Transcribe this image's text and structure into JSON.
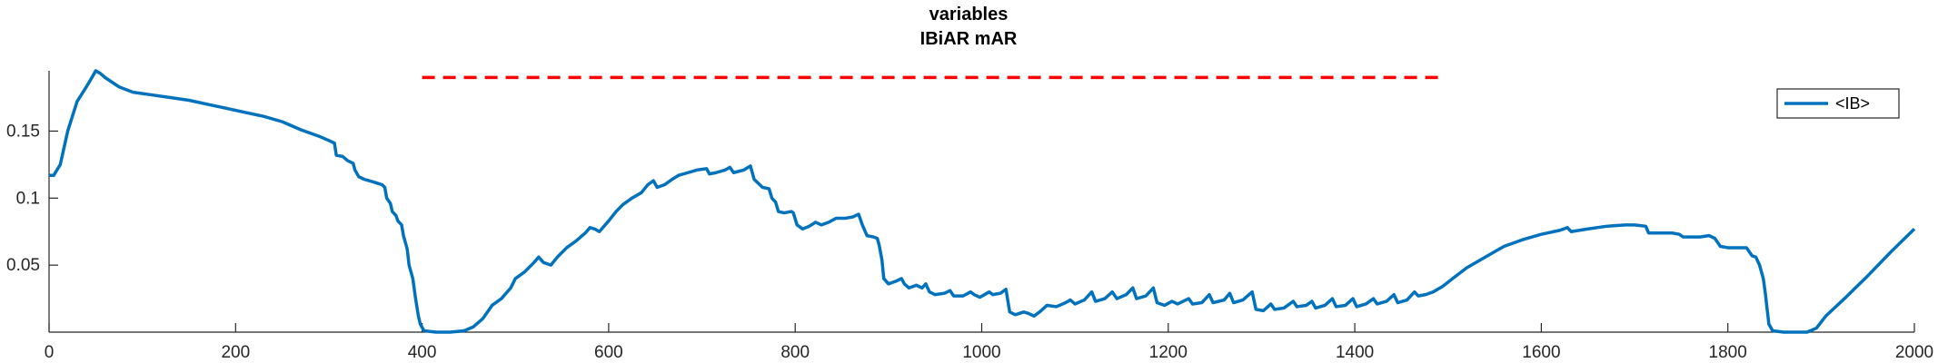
{
  "chart_data": {
    "type": "line",
    "title": "variables",
    "subtitle": "IBiAR mAR",
    "xlabel": "",
    "ylabel": "",
    "xlim": [
      0,
      2000
    ],
    "ylim": [
      0,
      0.195
    ],
    "xticks": [
      0,
      200,
      400,
      600,
      800,
      1000,
      1200,
      1400,
      1600,
      1800,
      2000
    ],
    "yticks": [
      0.05,
      0.1,
      0.15
    ],
    "ytick_labels": [
      "0.05",
      "0.1",
      "0.15"
    ],
    "grid": false,
    "legend": {
      "position": "top-right",
      "entries": [
        "<IB>"
      ]
    },
    "series": [
      {
        "name": "<IB>",
        "color": "#0072BD",
        "points": [
          [
            0,
            0.117
          ],
          [
            5,
            0.117
          ],
          [
            12,
            0.125
          ],
          [
            20,
            0.15
          ],
          [
            30,
            0.172
          ],
          [
            40,
            0.183
          ],
          [
            46,
            0.19
          ],
          [
            50,
            0.195
          ],
          [
            55,
            0.193
          ],
          [
            60,
            0.19
          ],
          [
            75,
            0.183
          ],
          [
            90,
            0.179
          ],
          [
            110,
            0.177
          ],
          [
            130,
            0.175
          ],
          [
            150,
            0.173
          ],
          [
            170,
            0.17
          ],
          [
            190,
            0.167
          ],
          [
            210,
            0.164
          ],
          [
            230,
            0.161
          ],
          [
            250,
            0.157
          ],
          [
            270,
            0.151
          ],
          [
            290,
            0.146
          ],
          [
            300,
            0.143
          ],
          [
            306,
            0.141
          ],
          [
            308,
            0.132
          ],
          [
            315,
            0.131
          ],
          [
            320,
            0.128
          ],
          [
            326,
            0.126
          ],
          [
            328,
            0.121
          ],
          [
            332,
            0.116
          ],
          [
            338,
            0.114
          ],
          [
            348,
            0.112
          ],
          [
            357,
            0.11
          ],
          [
            360,
            0.108
          ],
          [
            362,
            0.1
          ],
          [
            366,
            0.096
          ],
          [
            368,
            0.09
          ],
          [
            372,
            0.087
          ],
          [
            374,
            0.083
          ],
          [
            378,
            0.08
          ],
          [
            380,
            0.072
          ],
          [
            384,
            0.062
          ],
          [
            386,
            0.05
          ],
          [
            390,
            0.04
          ],
          [
            393,
            0.025
          ],
          [
            396,
            0.012
          ],
          [
            398,
            0.006
          ],
          [
            402,
            0.001
          ],
          [
            415,
            0.0
          ],
          [
            430,
            0.0
          ],
          [
            445,
            0.001
          ],
          [
            455,
            0.004
          ],
          [
            465,
            0.01
          ],
          [
            475,
            0.02
          ],
          [
            485,
            0.025
          ],
          [
            495,
            0.033
          ],
          [
            500,
            0.04
          ],
          [
            510,
            0.045
          ],
          [
            520,
            0.052
          ],
          [
            525,
            0.056
          ],
          [
            530,
            0.052
          ],
          [
            538,
            0.05
          ],
          [
            545,
            0.056
          ],
          [
            555,
            0.063
          ],
          [
            565,
            0.068
          ],
          [
            575,
            0.074
          ],
          [
            580,
            0.078
          ],
          [
            585,
            0.077
          ],
          [
            590,
            0.075
          ],
          [
            600,
            0.083
          ],
          [
            608,
            0.09
          ],
          [
            615,
            0.095
          ],
          [
            625,
            0.1
          ],
          [
            635,
            0.104
          ],
          [
            642,
            0.11
          ],
          [
            648,
            0.113
          ],
          [
            652,
            0.108
          ],
          [
            660,
            0.11
          ],
          [
            668,
            0.114
          ],
          [
            675,
            0.117
          ],
          [
            685,
            0.119
          ],
          [
            695,
            0.121
          ],
          [
            705,
            0.122
          ],
          [
            708,
            0.118
          ],
          [
            715,
            0.119
          ],
          [
            725,
            0.121
          ],
          [
            730,
            0.123
          ],
          [
            734,
            0.119
          ],
          [
            745,
            0.121
          ],
          [
            752,
            0.124
          ],
          [
            756,
            0.114
          ],
          [
            765,
            0.108
          ],
          [
            772,
            0.107
          ],
          [
            775,
            0.1
          ],
          [
            779,
            0.097
          ],
          [
            782,
            0.09
          ],
          [
            788,
            0.089
          ],
          [
            796,
            0.09
          ],
          [
            798,
            0.089
          ],
          [
            802,
            0.08
          ],
          [
            808,
            0.077
          ],
          [
            815,
            0.079
          ],
          [
            822,
            0.082
          ],
          [
            828,
            0.08
          ],
          [
            836,
            0.082
          ],
          [
            844,
            0.085
          ],
          [
            854,
            0.085
          ],
          [
            862,
            0.086
          ],
          [
            868,
            0.088
          ],
          [
            872,
            0.08
          ],
          [
            877,
            0.072
          ],
          [
            884,
            0.071
          ],
          [
            888,
            0.07
          ],
          [
            890,
            0.065
          ],
          [
            893,
            0.054
          ],
          [
            895,
            0.04
          ],
          [
            900,
            0.036
          ],
          [
            908,
            0.038
          ],
          [
            914,
            0.04
          ],
          [
            917,
            0.036
          ],
          [
            922,
            0.033
          ],
          [
            930,
            0.035
          ],
          [
            936,
            0.033
          ],
          [
            940,
            0.036
          ],
          [
            944,
            0.03
          ],
          [
            950,
            0.028
          ],
          [
            960,
            0.029
          ],
          [
            966,
            0.031
          ],
          [
            970,
            0.027
          ],
          [
            980,
            0.027
          ],
          [
            988,
            0.03
          ],
          [
            992,
            0.028
          ],
          [
            998,
            0.026
          ],
          [
            1008,
            0.03
          ],
          [
            1012,
            0.028
          ],
          [
            1020,
            0.029
          ],
          [
            1026,
            0.032
          ],
          [
            1030,
            0.015
          ],
          [
            1036,
            0.013
          ],
          [
            1045,
            0.015
          ],
          [
            1050,
            0.014
          ],
          [
            1056,
            0.012
          ],
          [
            1062,
            0.015
          ],
          [
            1070,
            0.02
          ],
          [
            1080,
            0.019
          ],
          [
            1090,
            0.022
          ],
          [
            1095,
            0.024
          ],
          [
            1100,
            0.021
          ],
          [
            1110,
            0.024
          ],
          [
            1118,
            0.03
          ],
          [
            1122,
            0.023
          ],
          [
            1132,
            0.025
          ],
          [
            1140,
            0.03
          ],
          [
            1145,
            0.025
          ],
          [
            1155,
            0.028
          ],
          [
            1162,
            0.033
          ],
          [
            1166,
            0.025
          ],
          [
            1176,
            0.027
          ],
          [
            1184,
            0.033
          ],
          [
            1188,
            0.022
          ],
          [
            1196,
            0.02
          ],
          [
            1204,
            0.023
          ],
          [
            1210,
            0.021
          ],
          [
            1222,
            0.025
          ],
          [
            1226,
            0.021
          ],
          [
            1236,
            0.022
          ],
          [
            1244,
            0.028
          ],
          [
            1248,
            0.022
          ],
          [
            1260,
            0.024
          ],
          [
            1266,
            0.029
          ],
          [
            1270,
            0.022
          ],
          [
            1280,
            0.024
          ],
          [
            1290,
            0.03
          ],
          [
            1294,
            0.017
          ],
          [
            1302,
            0.016
          ],
          [
            1310,
            0.021
          ],
          [
            1314,
            0.017
          ],
          [
            1324,
            0.018
          ],
          [
            1334,
            0.023
          ],
          [
            1338,
            0.019
          ],
          [
            1348,
            0.02
          ],
          [
            1354,
            0.023
          ],
          [
            1358,
            0.018
          ],
          [
            1368,
            0.02
          ],
          [
            1376,
            0.025
          ],
          [
            1380,
            0.019
          ],
          [
            1390,
            0.02
          ],
          [
            1398,
            0.025
          ],
          [
            1402,
            0.019
          ],
          [
            1412,
            0.021
          ],
          [
            1420,
            0.025
          ],
          [
            1424,
            0.021
          ],
          [
            1434,
            0.023
          ],
          [
            1442,
            0.028
          ],
          [
            1446,
            0.022
          ],
          [
            1456,
            0.024
          ],
          [
            1464,
            0.03
          ],
          [
            1468,
            0.027
          ],
          [
            1476,
            0.028
          ],
          [
            1484,
            0.03
          ],
          [
            1494,
            0.034
          ],
          [
            1505,
            0.04
          ],
          [
            1520,
            0.048
          ],
          [
            1540,
            0.056
          ],
          [
            1560,
            0.064
          ],
          [
            1580,
            0.069
          ],
          [
            1600,
            0.073
          ],
          [
            1620,
            0.076
          ],
          [
            1628,
            0.078
          ],
          [
            1632,
            0.075
          ],
          [
            1650,
            0.077
          ],
          [
            1670,
            0.079
          ],
          [
            1690,
            0.08
          ],
          [
            1700,
            0.08
          ],
          [
            1712,
            0.079
          ],
          [
            1715,
            0.074
          ],
          [
            1740,
            0.074
          ],
          [
            1748,
            0.073
          ],
          [
            1752,
            0.071
          ],
          [
            1770,
            0.071
          ],
          [
            1780,
            0.072
          ],
          [
            1786,
            0.07
          ],
          [
            1792,
            0.064
          ],
          [
            1800,
            0.063
          ],
          [
            1810,
            0.063
          ],
          [
            1820,
            0.063
          ],
          [
            1826,
            0.057
          ],
          [
            1830,
            0.056
          ],
          [
            1834,
            0.05
          ],
          [
            1838,
            0.04
          ],
          [
            1840,
            0.03
          ],
          [
            1842,
            0.018
          ],
          [
            1844,
            0.006
          ],
          [
            1848,
            0.001
          ],
          [
            1860,
            0.0
          ],
          [
            1885,
            0.0
          ],
          [
            1895,
            0.003
          ],
          [
            1905,
            0.012
          ],
          [
            1925,
            0.025
          ],
          [
            1950,
            0.042
          ],
          [
            1975,
            0.06
          ],
          [
            2000,
            0.077
          ]
        ]
      },
      {
        "name": "",
        "color": "#FF0000",
        "style": "dashed",
        "points": [
          [
            400,
            0.19
          ],
          [
            1490,
            0.19
          ]
        ]
      }
    ]
  }
}
